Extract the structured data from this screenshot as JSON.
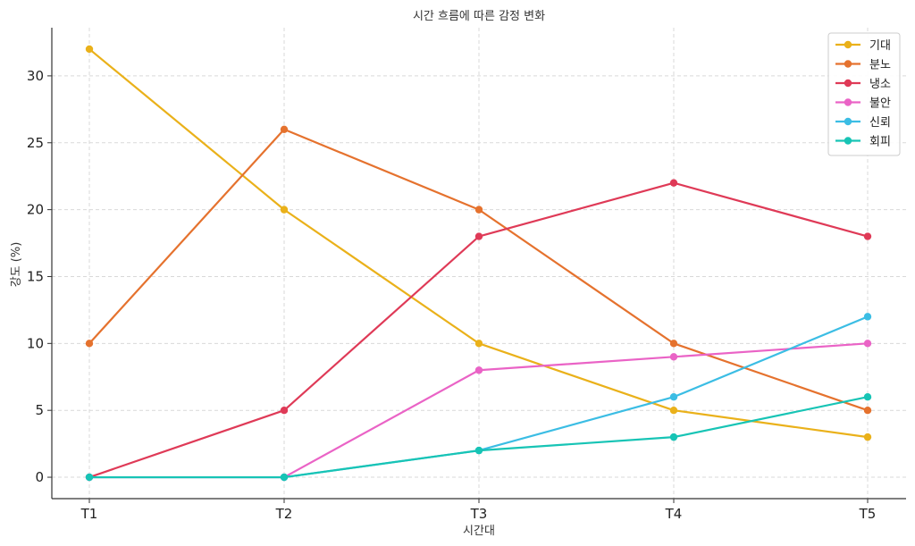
{
  "chart_data": {
    "type": "line",
    "title": "시간 흐름에 따른 감정 변화",
    "xlabel": "시간대",
    "ylabel": "강도 (%)",
    "categories": [
      "T1",
      "T2",
      "T3",
      "T4",
      "T5"
    ],
    "ylim": [
      -1.6,
      33.6
    ],
    "yticks": [
      0,
      5,
      10,
      15,
      20,
      25,
      30
    ],
    "grid": true,
    "legend_position": "top-right",
    "series": [
      {
        "name": "기대",
        "color": "#eab11a",
        "values": [
          32,
          20,
          10,
          5,
          3
        ]
      },
      {
        "name": "분노",
        "color": "#e5722e",
        "values": [
          10,
          26,
          20,
          10,
          5
        ]
      },
      {
        "name": "냉소",
        "color": "#df3a57",
        "values": [
          0,
          5,
          18,
          22,
          18
        ]
      },
      {
        "name": "불안",
        "color": "#ea63c6",
        "values": [
          0,
          0,
          8,
          9,
          10
        ]
      },
      {
        "name": "신뢰",
        "color": "#3bbde4",
        "values": [
          0,
          0,
          2,
          6,
          12
        ]
      },
      {
        "name": "회피",
        "color": "#17c4b5",
        "values": [
          0,
          0,
          2,
          3,
          6
        ]
      }
    ]
  }
}
